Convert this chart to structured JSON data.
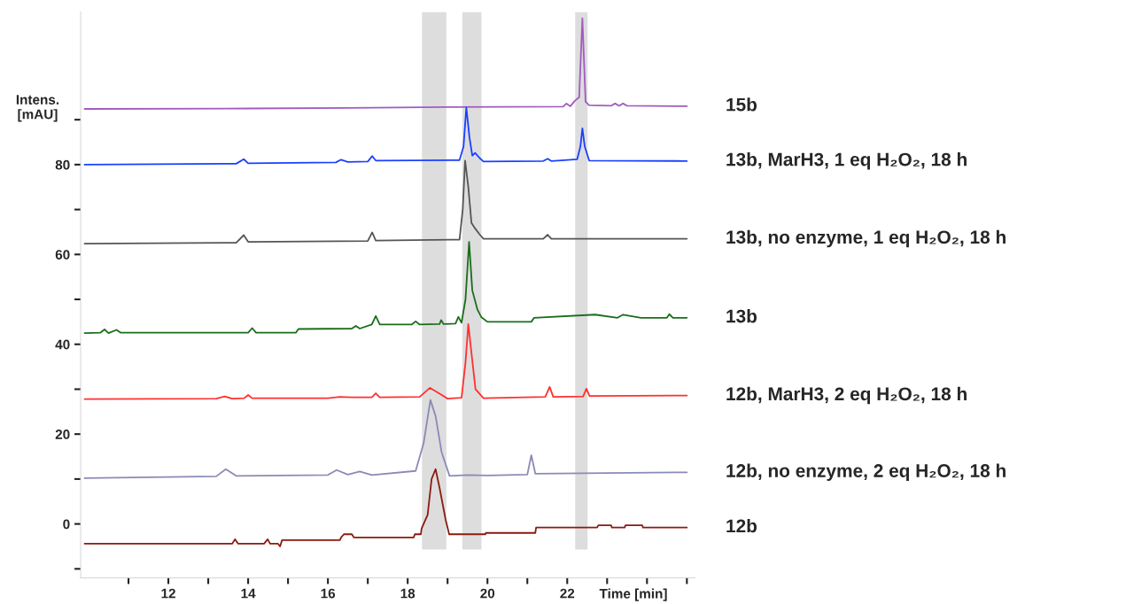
{
  "chart_data": {
    "type": "line",
    "xlabel": "Time [min]",
    "ylabel": "Intens.\n[mAU]",
    "xlim": [
      9.8,
      25.2
    ],
    "ylim": [
      -12,
      114
    ],
    "xticks": [
      {
        "value": 11,
        "label": null
      },
      12,
      {
        "value": 13,
        "label": null
      },
      14,
      {
        "value": 15,
        "label": null
      },
      16,
      {
        "value": 17,
        "label": null
      },
      18,
      {
        "value": 19,
        "label": null
      },
      20,
      {
        "value": 21,
        "label": null
      },
      22,
      {
        "value": 23,
        "label": null
      },
      {
        "value": 24,
        "label": null
      },
      {
        "value": 25,
        "label": null
      }
    ],
    "yticks": [
      {
        "value": -10,
        "label": null
      },
      0,
      {
        "value": 10,
        "label": null
      },
      20,
      {
        "value": 30,
        "label": null
      },
      40,
      {
        "value": 50,
        "label": null
      },
      60,
      {
        "value": 70,
        "label": null
      },
      80,
      {
        "value": 90,
        "label": null
      }
    ],
    "grid": false,
    "legend": false,
    "marker": "none",
    "line_style": "solid",
    "bands": [
      {
        "axis": "x",
        "from": 18.36,
        "to": 18.97,
        "color": "#dddddd"
      },
      {
        "axis": "x",
        "from": 19.37,
        "to": 19.85,
        "color": "#dddddd"
      },
      {
        "axis": "x",
        "from": 22.2,
        "to": 22.51,
        "color": "#dddddd"
      }
    ],
    "series": [
      {
        "name": "15b",
        "color": "#a05cc0",
        "x": [
          9.9,
          14.0,
          16.5,
          19.0,
          21.9,
          21.98,
          22.08,
          22.19,
          22.3,
          22.38,
          22.46,
          22.55,
          23.1,
          23.2,
          23.3,
          23.4,
          23.5,
          25.0
        ],
        "values": [
          92.4,
          92.5,
          92.6,
          92.8,
          92.9,
          93.6,
          93.0,
          94.2,
          95.0,
          112.6,
          94.0,
          93.2,
          93.1,
          93.6,
          93.1,
          93.6,
          93.1,
          93.0
        ]
      },
      {
        "name": "13b, MarH3, 1 eq H₂O₂, 18 h",
        "color": "#1a40ff",
        "x": [
          9.9,
          13.7,
          13.89,
          14.0,
          16.2,
          16.33,
          16.5,
          17.0,
          17.11,
          17.2,
          19.3,
          19.4,
          19.47,
          19.55,
          19.62,
          19.69,
          19.8,
          19.9,
          21.4,
          21.51,
          21.6,
          22.25,
          22.33,
          22.38,
          22.44,
          22.55,
          25.0
        ],
        "values": [
          80.0,
          80.2,
          81.2,
          80.3,
          80.5,
          81.1,
          80.6,
          80.7,
          81.9,
          80.9,
          81.0,
          84.0,
          92.7,
          86.0,
          82.0,
          82.6,
          81.5,
          80.7,
          80.8,
          81.3,
          80.8,
          81.2,
          84.0,
          88.1,
          84.0,
          80.9,
          80.8
        ]
      },
      {
        "name": "13b, no enzyme, 1 eq H₂O₂, 18 h",
        "color": "#555555",
        "x": [
          9.9,
          13.7,
          13.89,
          14.0,
          17.0,
          17.11,
          17.2,
          19.3,
          19.38,
          19.44,
          19.52,
          19.6,
          19.69,
          19.8,
          19.9,
          21.4,
          21.51,
          21.6,
          25.0
        ],
        "values": [
          62.4,
          62.6,
          64.3,
          62.8,
          63.0,
          64.9,
          63.1,
          63.3,
          70.0,
          80.9,
          75.0,
          67.0,
          65.8,
          64.5,
          63.5,
          63.5,
          64.4,
          63.5,
          63.5
        ]
      },
      {
        "name": "13b",
        "color": "#1a6e1a",
        "x": [
          9.9,
          10.3,
          10.4,
          10.5,
          10.7,
          10.8,
          14.0,
          14.1,
          14.2,
          15.2,
          15.26,
          16.6,
          16.7,
          16.8,
          17.1,
          17.2,
          17.3,
          18.1,
          18.2,
          18.3,
          18.8,
          18.84,
          18.9,
          19.2,
          19.27,
          19.35,
          19.45,
          19.54,
          19.62,
          19.75,
          19.85,
          20.0,
          21.1,
          21.17,
          22.7,
          23.26,
          23.4,
          23.85,
          24.5,
          24.56,
          24.65,
          25.0
        ],
        "values": [
          42.5,
          42.6,
          43.3,
          42.5,
          43.2,
          42.6,
          42.6,
          43.6,
          42.6,
          42.6,
          43.4,
          43.5,
          44.1,
          43.5,
          44.4,
          46.3,
          44.4,
          44.4,
          45.1,
          44.4,
          44.5,
          45.4,
          44.5,
          44.6,
          46.1,
          44.8,
          50.0,
          62.8,
          52.0,
          47.7,
          46.0,
          45.0,
          45.0,
          45.9,
          46.6,
          45.9,
          46.6,
          45.9,
          45.9,
          46.7,
          45.9,
          45.9
        ]
      },
      {
        "name": "12b, MarH3, 2 eq H₂O₂, 18 h",
        "color": "#ff3030",
        "x": [
          9.9,
          13.2,
          13.41,
          13.6,
          13.9,
          14.0,
          14.1,
          16.0,
          16.3,
          16.6,
          17.1,
          17.2,
          17.3,
          18.3,
          18.56,
          18.8,
          19.0,
          19.35,
          19.45,
          19.52,
          19.6,
          19.7,
          19.9,
          21.45,
          21.56,
          21.65,
          22.4,
          22.48,
          22.56,
          25.0
        ],
        "values": [
          27.8,
          27.9,
          28.4,
          27.9,
          28.0,
          28.7,
          28.0,
          28.0,
          28.3,
          28.2,
          28.2,
          29.1,
          28.2,
          28.3,
          30.3,
          29.0,
          27.9,
          28.1,
          36.0,
          44.5,
          38.0,
          30.0,
          28.0,
          28.3,
          30.5,
          28.3,
          28.4,
          30.1,
          28.5,
          28.6
        ]
      },
      {
        "name": "12b, no enzyme, 2 eq H₂O₂, 18 h",
        "color": "#8a8ab8",
        "x": [
          9.9,
          13.2,
          13.44,
          13.7,
          16.0,
          16.22,
          16.5,
          16.8,
          17.1,
          18.2,
          18.4,
          18.57,
          18.7,
          18.85,
          19.05,
          19.5,
          20.0,
          21.0,
          21.1,
          21.2,
          25.0
        ],
        "values": [
          10.2,
          10.6,
          12.2,
          10.7,
          10.9,
          12.0,
          11.0,
          11.7,
          10.9,
          11.8,
          18.0,
          27.6,
          24.0,
          16.0,
          10.7,
          10.9,
          10.8,
          11.0,
          15.3,
          11.2,
          11.5
        ]
      },
      {
        "name": "12b",
        "color": "#8b1a10",
        "x": [
          9.9,
          13.6,
          13.67,
          13.75,
          14.4,
          14.49,
          14.55,
          14.75,
          14.8,
          14.85,
          16.3,
          16.33,
          16.4,
          16.6,
          16.65,
          18.15,
          18.18,
          18.33,
          18.35,
          18.5,
          18.6,
          18.7,
          18.8,
          18.95,
          19.04,
          19.95,
          19.96,
          21.2,
          21.22,
          22.75,
          22.78,
          23.1,
          23.12,
          23.44,
          23.46,
          23.88,
          23.9,
          25.0
        ],
        "values": [
          -4.4,
          -4.4,
          -3.4,
          -4.4,
          -4.4,
          -3.4,
          -4.4,
          -4.4,
          -5.0,
          -3.6,
          -3.6,
          -3.0,
          -2.3,
          -2.3,
          -3.0,
          -3.0,
          -2.3,
          -2.3,
          -1.0,
          2.0,
          10.0,
          12.2,
          8.0,
          1.0,
          -2.3,
          -2.3,
          -2.0,
          -2.0,
          -0.8,
          -0.8,
          -0.3,
          -0.3,
          -0.8,
          -0.8,
          -0.3,
          -0.3,
          -0.8,
          -0.8
        ]
      }
    ]
  }
}
